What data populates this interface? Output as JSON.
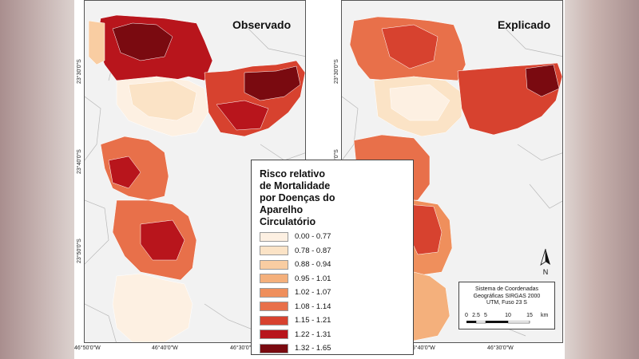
{
  "panels": {
    "left_title": "Observado",
    "right_title": "Explicado"
  },
  "axes": {
    "lat_labels": [
      "23°30'0\"S",
      "23°40'0\"S",
      "23°50'0\"S"
    ],
    "lon_labels": [
      "46°50'0\"W",
      "46°40'0\"W",
      "46°30'0\"W"
    ]
  },
  "legend": {
    "title": "Risco relativo de Mortalidade por Doenças do Aparelho Circulatório",
    "classes": [
      {
        "label": "0.00 - 0.77",
        "color": "#fdf0e2"
      },
      {
        "label": "0.78 - 0.87",
        "color": "#fbe3c6"
      },
      {
        "label": "0.88 - 0.94",
        "color": "#f9cda2"
      },
      {
        "label": "0.95 - 1.01",
        "color": "#f4b07c"
      },
      {
        "label": "1.02 - 1.07",
        "color": "#ef8f5c"
      },
      {
        "label": "1.08 - 1.14",
        "color": "#e8704a"
      },
      {
        "label": "1.15 - 1.21",
        "color": "#d7422f"
      },
      {
        "label": "1.22 - 1.31",
        "color": "#b8151c"
      },
      {
        "label": "1.32 - 1.65",
        "color": "#7a0a10"
      }
    ]
  },
  "info": {
    "line1": "Sistema de Coordenadas",
    "line2": "Geográficas SIRGAS 2000",
    "line3": "UTM, Fuso 23 S",
    "scale_ticks": [
      "0",
      "2.5",
      "5",
      "10",
      "15"
    ],
    "scale_unit": "km"
  },
  "north_label": "N"
}
